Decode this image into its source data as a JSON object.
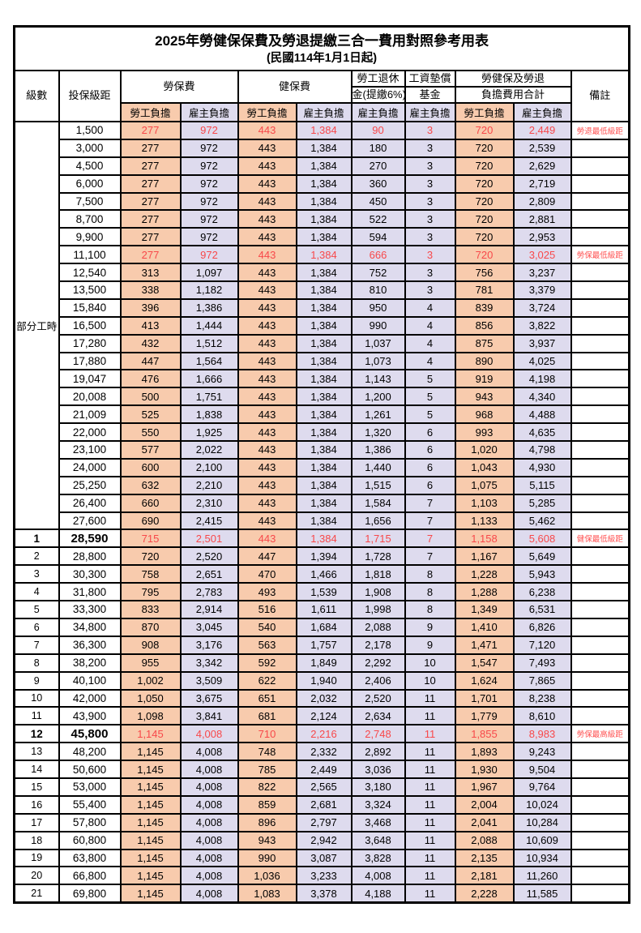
{
  "title": "2025年勞健保保費及勞退提繳三合一費用對照參考用表",
  "subtitle": "(民國114年1月1日起)",
  "colors": {
    "employee_bg": "#F8CBAD",
    "employer_bg": "#DEDBEE",
    "highlight_red": "#F8484A",
    "remark_red": "#FF5050",
    "border": "#000000"
  },
  "header": {
    "level": "級數",
    "bracket": "投保級距",
    "labor_insurance": "勞保費",
    "health_insurance": "健保費",
    "pension_line1": "勞工退休",
    "pension_line2": "金(提繳6%)",
    "wage_fund_line1": "工資墊償",
    "wage_fund_line2": "基金",
    "total_line1": "勞健保及勞退",
    "total_line2": "負擔費用合計",
    "remark": "備註",
    "employee_burden": "勞工負擔",
    "employer_burden": "雇主負擔"
  },
  "part_time": {
    "label": "部分工時",
    "row_span": 23
  },
  "columns_order": [
    "labor_emp",
    "labor_er",
    "health_emp",
    "health_er",
    "pension_er",
    "fund_er",
    "total_emp",
    "total_er"
  ],
  "rows": [
    {
      "level": "",
      "bracket": "1,500",
      "values": [
        "277",
        "972",
        "443",
        "1,384",
        "90",
        "3",
        "720",
        "2,449"
      ],
      "remark": "勞退最低級距",
      "red": true,
      "bold": false
    },
    {
      "level": "",
      "bracket": "3,000",
      "values": [
        "277",
        "972",
        "443",
        "1,384",
        "180",
        "3",
        "720",
        "2,539"
      ],
      "remark": "",
      "red": false,
      "bold": false
    },
    {
      "level": "",
      "bracket": "4,500",
      "values": [
        "277",
        "972",
        "443",
        "1,384",
        "270",
        "3",
        "720",
        "2,629"
      ],
      "remark": "",
      "red": false,
      "bold": false
    },
    {
      "level": "",
      "bracket": "6,000",
      "values": [
        "277",
        "972",
        "443",
        "1,384",
        "360",
        "3",
        "720",
        "2,719"
      ],
      "remark": "",
      "red": false,
      "bold": false
    },
    {
      "level": "",
      "bracket": "7,500",
      "values": [
        "277",
        "972",
        "443",
        "1,384",
        "450",
        "3",
        "720",
        "2,809"
      ],
      "remark": "",
      "red": false,
      "bold": false
    },
    {
      "level": "",
      "bracket": "8,700",
      "values": [
        "277",
        "972",
        "443",
        "1,384",
        "522",
        "3",
        "720",
        "2,881"
      ],
      "remark": "",
      "red": false,
      "bold": false
    },
    {
      "level": "",
      "bracket": "9,900",
      "values": [
        "277",
        "972",
        "443",
        "1,384",
        "594",
        "3",
        "720",
        "2,953"
      ],
      "remark": "",
      "red": false,
      "bold": false
    },
    {
      "level": "",
      "bracket": "11,100",
      "values": [
        "277",
        "972",
        "443",
        "1,384",
        "666",
        "3",
        "720",
        "3,025"
      ],
      "remark": "勞保最低級距",
      "red": true,
      "bold": false
    },
    {
      "level": "",
      "bracket": "12,540",
      "values": [
        "313",
        "1,097",
        "443",
        "1,384",
        "752",
        "3",
        "756",
        "3,237"
      ],
      "remark": "",
      "red": false,
      "bold": false
    },
    {
      "level": "",
      "bracket": "13,500",
      "values": [
        "338",
        "1,182",
        "443",
        "1,384",
        "810",
        "3",
        "781",
        "3,379"
      ],
      "remark": "",
      "red": false,
      "bold": false
    },
    {
      "level": "",
      "bracket": "15,840",
      "values": [
        "396",
        "1,386",
        "443",
        "1,384",
        "950",
        "4",
        "839",
        "3,724"
      ],
      "remark": "",
      "red": false,
      "bold": false
    },
    {
      "level": "",
      "bracket": "16,500",
      "values": [
        "413",
        "1,444",
        "443",
        "1,384",
        "990",
        "4",
        "856",
        "3,822"
      ],
      "remark": "",
      "red": false,
      "bold": false
    },
    {
      "level": "",
      "bracket": "17,280",
      "values": [
        "432",
        "1,512",
        "443",
        "1,384",
        "1,037",
        "4",
        "875",
        "3,937"
      ],
      "remark": "",
      "red": false,
      "bold": false
    },
    {
      "level": "",
      "bracket": "17,880",
      "values": [
        "447",
        "1,564",
        "443",
        "1,384",
        "1,073",
        "4",
        "890",
        "4,025"
      ],
      "remark": "",
      "red": false,
      "bold": false
    },
    {
      "level": "",
      "bracket": "19,047",
      "values": [
        "476",
        "1,666",
        "443",
        "1,384",
        "1,143",
        "5",
        "919",
        "4,198"
      ],
      "remark": "",
      "red": false,
      "bold": false
    },
    {
      "level": "",
      "bracket": "20,008",
      "values": [
        "500",
        "1,751",
        "443",
        "1,384",
        "1,200",
        "5",
        "943",
        "4,340"
      ],
      "remark": "",
      "red": false,
      "bold": false
    },
    {
      "level": "",
      "bracket": "21,009",
      "values": [
        "525",
        "1,838",
        "443",
        "1,384",
        "1,261",
        "5",
        "968",
        "4,488"
      ],
      "remark": "",
      "red": false,
      "bold": false
    },
    {
      "level": "",
      "bracket": "22,000",
      "values": [
        "550",
        "1,925",
        "443",
        "1,384",
        "1,320",
        "6",
        "993",
        "4,635"
      ],
      "remark": "",
      "red": false,
      "bold": false
    },
    {
      "level": "",
      "bracket": "23,100",
      "values": [
        "577",
        "2,022",
        "443",
        "1,384",
        "1,386",
        "6",
        "1,020",
        "4,798"
      ],
      "remark": "",
      "red": false,
      "bold": false
    },
    {
      "level": "",
      "bracket": "24,000",
      "values": [
        "600",
        "2,100",
        "443",
        "1,384",
        "1,440",
        "6",
        "1,043",
        "4,930"
      ],
      "remark": "",
      "red": false,
      "bold": false
    },
    {
      "level": "",
      "bracket": "25,250",
      "values": [
        "632",
        "2,210",
        "443",
        "1,384",
        "1,515",
        "6",
        "1,075",
        "5,115"
      ],
      "remark": "",
      "red": false,
      "bold": false
    },
    {
      "level": "",
      "bracket": "26,400",
      "values": [
        "660",
        "2,310",
        "443",
        "1,384",
        "1,584",
        "7",
        "1,103",
        "5,285"
      ],
      "remark": "",
      "red": false,
      "bold": false
    },
    {
      "level": "",
      "bracket": "27,600",
      "values": [
        "690",
        "2,415",
        "443",
        "1,384",
        "1,656",
        "7",
        "1,133",
        "5,462"
      ],
      "remark": "",
      "red": false,
      "bold": false
    },
    {
      "level": "1",
      "bracket": "28,590",
      "values": [
        "715",
        "2,501",
        "443",
        "1,384",
        "1,715",
        "7",
        "1,158",
        "5,608"
      ],
      "remark": "健保最低級距",
      "red": true,
      "bold": true
    },
    {
      "level": "2",
      "bracket": "28,800",
      "values": [
        "720",
        "2,520",
        "447",
        "1,394",
        "1,728",
        "7",
        "1,167",
        "5,649"
      ],
      "remark": "",
      "red": false,
      "bold": false
    },
    {
      "level": "3",
      "bracket": "30,300",
      "values": [
        "758",
        "2,651",
        "470",
        "1,466",
        "1,818",
        "8",
        "1,228",
        "5,943"
      ],
      "remark": "",
      "red": false,
      "bold": false
    },
    {
      "level": "4",
      "bracket": "31,800",
      "values": [
        "795",
        "2,783",
        "493",
        "1,539",
        "1,908",
        "8",
        "1,288",
        "6,238"
      ],
      "remark": "",
      "red": false,
      "bold": false
    },
    {
      "level": "5",
      "bracket": "33,300",
      "values": [
        "833",
        "2,914",
        "516",
        "1,611",
        "1,998",
        "8",
        "1,349",
        "6,531"
      ],
      "remark": "",
      "red": false,
      "bold": false
    },
    {
      "level": "6",
      "bracket": "34,800",
      "values": [
        "870",
        "3,045",
        "540",
        "1,684",
        "2,088",
        "9",
        "1,410",
        "6,826"
      ],
      "remark": "",
      "red": false,
      "bold": false
    },
    {
      "level": "7",
      "bracket": "36,300",
      "values": [
        "908",
        "3,176",
        "563",
        "1,757",
        "2,178",
        "9",
        "1,471",
        "7,120"
      ],
      "remark": "",
      "red": false,
      "bold": false
    },
    {
      "level": "8",
      "bracket": "38,200",
      "values": [
        "955",
        "3,342",
        "592",
        "1,849",
        "2,292",
        "10",
        "1,547",
        "7,493"
      ],
      "remark": "",
      "red": false,
      "bold": false
    },
    {
      "level": "9",
      "bracket": "40,100",
      "values": [
        "1,002",
        "3,509",
        "622",
        "1,940",
        "2,406",
        "10",
        "1,624",
        "7,865"
      ],
      "remark": "",
      "red": false,
      "bold": false
    },
    {
      "level": "10",
      "bracket": "42,000",
      "values": [
        "1,050",
        "3,675",
        "651",
        "2,032",
        "2,520",
        "11",
        "1,701",
        "8,238"
      ],
      "remark": "",
      "red": false,
      "bold": false
    },
    {
      "level": "11",
      "bracket": "43,900",
      "values": [
        "1,098",
        "3,841",
        "681",
        "2,124",
        "2,634",
        "11",
        "1,779",
        "8,610"
      ],
      "remark": "",
      "red": false,
      "bold": false
    },
    {
      "level": "12",
      "bracket": "45,800",
      "values": [
        "1,145",
        "4,008",
        "710",
        "2,216",
        "2,748",
        "11",
        "1,855",
        "8,983"
      ],
      "remark": "勞保最高級距",
      "red": true,
      "bold": true
    },
    {
      "level": "13",
      "bracket": "48,200",
      "values": [
        "1,145",
        "4,008",
        "748",
        "2,332",
        "2,892",
        "11",
        "1,893",
        "9,243"
      ],
      "remark": "",
      "red": false,
      "bold": false
    },
    {
      "level": "14",
      "bracket": "50,600",
      "values": [
        "1,145",
        "4,008",
        "785",
        "2,449",
        "3,036",
        "11",
        "1,930",
        "9,504"
      ],
      "remark": "",
      "red": false,
      "bold": false
    },
    {
      "level": "15",
      "bracket": "53,000",
      "values": [
        "1,145",
        "4,008",
        "822",
        "2,565",
        "3,180",
        "11",
        "1,967",
        "9,764"
      ],
      "remark": "",
      "red": false,
      "bold": false
    },
    {
      "level": "16",
      "bracket": "55,400",
      "values": [
        "1,145",
        "4,008",
        "859",
        "2,681",
        "3,324",
        "11",
        "2,004",
        "10,024"
      ],
      "remark": "",
      "red": false,
      "bold": false
    },
    {
      "level": "17",
      "bracket": "57,800",
      "values": [
        "1,145",
        "4,008",
        "896",
        "2,797",
        "3,468",
        "11",
        "2,041",
        "10,284"
      ],
      "remark": "",
      "red": false,
      "bold": false
    },
    {
      "level": "18",
      "bracket": "60,800",
      "values": [
        "1,145",
        "4,008",
        "943",
        "2,942",
        "3,648",
        "11",
        "2,088",
        "10,609"
      ],
      "remark": "",
      "red": false,
      "bold": false
    },
    {
      "level": "19",
      "bracket": "63,800",
      "values": [
        "1,145",
        "4,008",
        "990",
        "3,087",
        "3,828",
        "11",
        "2,135",
        "10,934"
      ],
      "remark": "",
      "red": false,
      "bold": false
    },
    {
      "level": "20",
      "bracket": "66,800",
      "values": [
        "1,145",
        "4,008",
        "1,036",
        "3,233",
        "4,008",
        "11",
        "2,181",
        "11,260"
      ],
      "remark": "",
      "red": false,
      "bold": false
    },
    {
      "level": "21",
      "bracket": "69,800",
      "values": [
        "1,145",
        "4,008",
        "1,083",
        "3,378",
        "4,188",
        "11",
        "2,228",
        "11,585"
      ],
      "remark": "",
      "red": false,
      "bold": false
    }
  ]
}
